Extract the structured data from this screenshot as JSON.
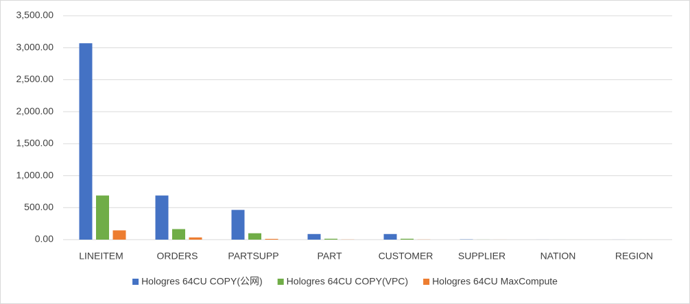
{
  "chart_data": {
    "type": "bar",
    "categories": [
      "LINEITEM",
      "ORDERS",
      "PARTSUPP",
      "PART",
      "CUSTOMER",
      "SUPPLIER",
      "NATION",
      "REGION"
    ],
    "series": [
      {
        "name": "Hologres 64CU COPY(公网)",
        "color": "#4472c4",
        "values": [
          3070,
          690,
          465,
          88,
          88,
          4,
          0.5,
          0.5
        ]
      },
      {
        "name": "Hologres 64CU COPY(VPC)",
        "color": "#70ad47",
        "values": [
          690,
          165,
          100,
          14,
          14,
          1,
          0.2,
          0.2
        ]
      },
      {
        "name": "Hologres 64CU MaxCompute",
        "color": "#ed7d31",
        "values": [
          145,
          35,
          12,
          2,
          2,
          0.5,
          0.1,
          0.1
        ]
      }
    ],
    "ylim": [
      0,
      3500
    ],
    "yticks": [
      {
        "value": 0,
        "label": "0.00"
      },
      {
        "value": 500,
        "label": "500.00"
      },
      {
        "value": 1000,
        "label": "1,000.00"
      },
      {
        "value": 1500,
        "label": "1,500.00"
      },
      {
        "value": 2000,
        "label": "2,000.00"
      },
      {
        "value": 2500,
        "label": "2,500.00"
      },
      {
        "value": 3000,
        "label": "3,000.00"
      },
      {
        "value": 3500,
        "label": "3,500.00"
      }
    ],
    "grid": true,
    "legend": "bottom"
  }
}
